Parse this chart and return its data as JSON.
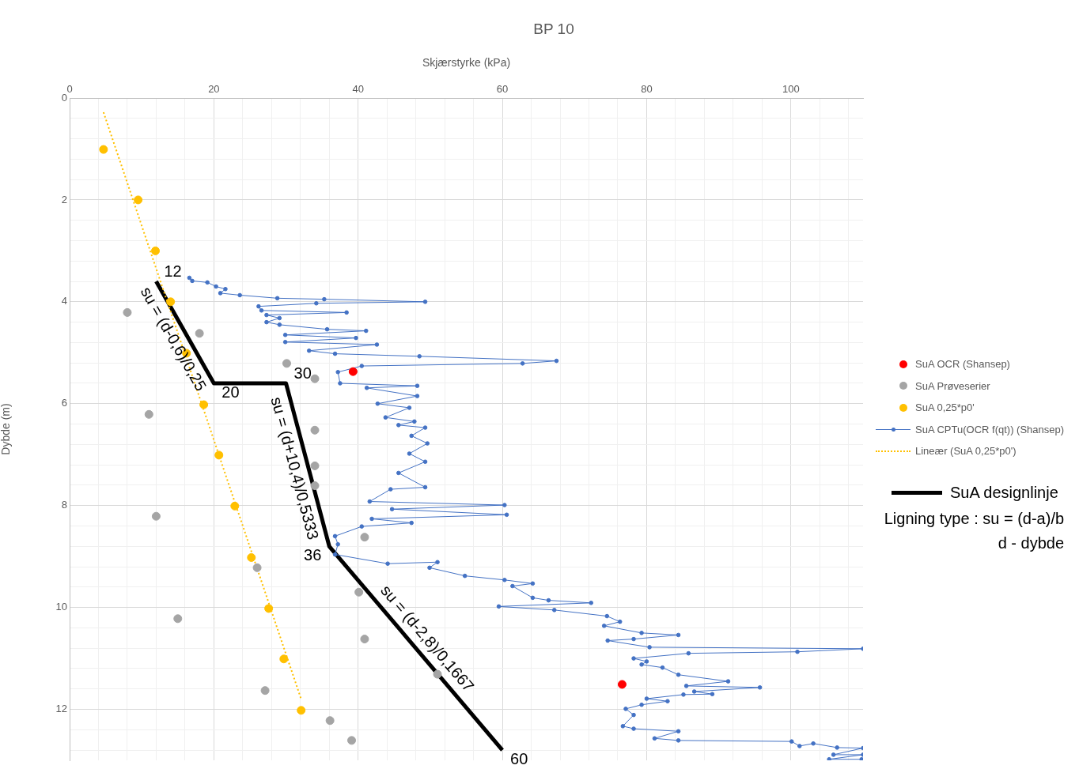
{
  "chart_data": {
    "type": "scatter",
    "title": "BP 10",
    "xlabel": "Skjærstyrke (kPa)",
    "ylabel": "Dybde (m)",
    "xlim": [
      0,
      110
    ],
    "ylim": [
      13,
      0
    ],
    "xticks": [
      0,
      {
        "value": 4,
        "label": null
      },
      {
        "value": 8,
        "label": null
      },
      {
        "value": 12,
        "label": null
      },
      {
        "value": 16,
        "label": null
      },
      20,
      {
        "value": 24,
        "label": null
      },
      {
        "value": 28,
        "label": null
      },
      {
        "value": 32,
        "label": null
      },
      {
        "value": 36,
        "label": null
      },
      40,
      {
        "value": 44,
        "label": null
      },
      {
        "value": 48,
        "label": null
      },
      {
        "value": 52,
        "label": null
      },
      {
        "value": 56,
        "label": null
      },
      60,
      {
        "value": 64,
        "label": null
      },
      {
        "value": 68,
        "label": null
      },
      {
        "value": 72,
        "label": null
      },
      {
        "value": 76,
        "label": null
      },
      80,
      {
        "value": 84,
        "label": null
      },
      {
        "value": 88,
        "label": null
      },
      {
        "value": 92,
        "label": null
      },
      {
        "value": 96,
        "label": null
      },
      100,
      {
        "value": 104,
        "label": null
      },
      {
        "value": 108,
        "label": null
      }
    ],
    "yticks": [
      0,
      {
        "value": 0.4,
        "label": null
      },
      {
        "value": 0.8,
        "label": null
      },
      {
        "value": 1.2,
        "label": null
      },
      {
        "value": 1.6,
        "label": null
      },
      2,
      {
        "value": 2.4,
        "label": null
      },
      {
        "value": 2.8,
        "label": null
      },
      {
        "value": 3.2,
        "label": null
      },
      {
        "value": 3.6,
        "label": null
      },
      4,
      {
        "value": 4.4,
        "label": null
      },
      {
        "value": 4.8,
        "label": null
      },
      {
        "value": 5.2,
        "label": null
      },
      {
        "value": 5.6,
        "label": null
      },
      6,
      {
        "value": 6.4,
        "label": null
      },
      {
        "value": 6.8,
        "label": null
      },
      {
        "value": 7.2,
        "label": null
      },
      {
        "value": 7.6,
        "label": null
      },
      8,
      {
        "value": 8.4,
        "label": null
      },
      {
        "value": 8.8,
        "label": null
      },
      {
        "value": 9.2,
        "label": null
      },
      {
        "value": 9.6,
        "label": null
      },
      10,
      {
        "value": 10.4,
        "label": null
      },
      {
        "value": 10.8,
        "label": null
      },
      {
        "value": 11.2,
        "label": null
      },
      {
        "value": 11.6,
        "label": null
      },
      12,
      {
        "value": 12.4,
        "label": null
      },
      {
        "value": 12.8,
        "label": null
      }
    ],
    "grid": true,
    "legend": "right",
    "series": [
      {
        "name": "SuA OCR (Shansep)",
        "type": "scatter",
        "marker": "circle",
        "color": "#ff0000",
        "x": [
          39.3,
          76.6
        ],
        "values": [
          5.37,
          11.51
        ]
      },
      {
        "name": "SuA Prøveserier",
        "type": "scatter",
        "marker": "circle",
        "color": "#a5a5a5",
        "x": [
          8.0,
          18.0,
          30.1,
          34.0,
          11.0,
          34.0,
          34.0,
          34.0,
          12.0,
          40.9,
          26.0,
          40.1,
          15.0,
          40.9,
          51.0,
          27.1,
          36.1,
          39.1
        ],
        "values": [
          4.21,
          4.62,
          5.21,
          5.51,
          6.21,
          6.52,
          7.22,
          7.61,
          8.21,
          8.62,
          9.22,
          9.7,
          10.22,
          10.62,
          11.31,
          11.63,
          12.22,
          12.61
        ]
      },
      {
        "name": "SuA 0,25*p0'",
        "type": "scatter",
        "marker": "circle",
        "color": "#ffc000",
        "x": [
          4.7,
          9.5,
          11.9,
          14.0,
          16.2,
          18.6,
          20.7,
          22.9,
          25.2,
          27.6,
          29.7,
          32.1
        ],
        "values": [
          1.01,
          2.0,
          3.0,
          4.0,
          5.01,
          6.02,
          7.01,
          8.01,
          9.02,
          10.02,
          11.01,
          12.02
        ]
      },
      {
        "name": "SuA CPTu(OCR f(qt)) (Shansep)",
        "type": "line",
        "marker": "circle",
        "color": "#4472c4",
        "x": [
          16.6,
          17.0,
          19.1,
          20.3,
          21.6,
          20.9,
          23.6,
          28.8,
          35.3,
          49.3,
          34.2,
          26.2,
          26.6,
          38.4,
          27.3,
          29.1,
          27.3,
          29.1,
          35.7,
          41.1,
          29.9,
          39.7,
          29.9,
          42.6,
          33.2,
          36.8,
          48.5,
          67.5,
          62.8,
          40.5,
          37.2,
          37.5,
          48.2,
          41.2,
          48.2,
          42.7,
          47.1,
          43.8,
          47.8,
          45.6,
          49.3,
          47.4,
          49.6,
          47.1,
          49.3,
          45.6,
          49.3,
          44.5,
          41.6,
          60.3,
          44.7,
          60.6,
          41.9,
          47.4,
          40.5,
          36.8,
          37.2,
          36.8,
          44.1,
          51.0,
          49.9,
          54.8,
          60.3,
          64.2,
          61.4,
          64.2,
          66.4,
          72.3,
          59.5,
          67.2,
          74.5,
          76.3,
          74.1,
          79.3,
          84.4,
          78.2,
          74.6,
          80.4,
          110,
          100.9,
          85.8,
          78.2,
          80.0,
          79.3,
          82.2,
          84.4,
          91.3,
          85.5,
          95.7,
          86.6,
          89.1,
          85.1,
          80.0,
          82.9,
          79.3,
          77.1,
          78.2,
          76.7,
          78.2,
          84.4,
          81.1,
          84.4,
          100.1,
          101.2,
          103.1,
          106.4,
          110,
          105.9,
          110,
          105.3,
          109.8
        ],
        "values": [
          3.53,
          3.59,
          3.62,
          3.7,
          3.75,
          3.83,
          3.87,
          3.93,
          3.95,
          4.0,
          4.03,
          4.09,
          4.17,
          4.21,
          4.26,
          4.32,
          4.4,
          4.45,
          4.54,
          4.57,
          4.65,
          4.71,
          4.79,
          4.84,
          4.96,
          5.02,
          5.07,
          5.16,
          5.21,
          5.26,
          5.38,
          5.6,
          5.65,
          5.69,
          5.85,
          6.0,
          6.08,
          6.27,
          6.35,
          6.42,
          6.47,
          6.63,
          6.78,
          6.98,
          7.14,
          7.36,
          7.64,
          7.68,
          7.92,
          7.99,
          8.07,
          8.18,
          8.26,
          8.34,
          8.41,
          8.6,
          8.76,
          8.96,
          9.14,
          9.11,
          9.22,
          9.38,
          9.46,
          9.53,
          9.58,
          9.81,
          9.86,
          9.91,
          9.98,
          10.05,
          10.17,
          10.28,
          10.36,
          10.5,
          10.54,
          10.62,
          10.65,
          10.78,
          10.81,
          10.87,
          10.9,
          11.0,
          11.06,
          11.12,
          11.18,
          11.32,
          11.45,
          11.54,
          11.57,
          11.65,
          11.7,
          11.71,
          11.79,
          11.84,
          11.91,
          11.99,
          12.11,
          12.33,
          12.38,
          12.43,
          12.57,
          12.61,
          12.63,
          12.72,
          12.67,
          12.75,
          12.76,
          12.89,
          12.89,
          12.98,
          12.98
        ]
      },
      {
        "name": "Lineær (SuA 0,25*p0')",
        "type": "line",
        "marker": "none",
        "line_style": "dotted",
        "color": "#ffc000",
        "x": [
          4.7,
          32.1
        ],
        "values": [
          0.28,
          11.8
        ]
      },
      {
        "name": "SuA designlinje",
        "type": "line",
        "marker": "none",
        "line_style": "solid",
        "color": "#000000",
        "x": [
          12,
          20,
          30,
          36,
          60
        ],
        "values": [
          3.6,
          5.6,
          5.6,
          8.8,
          12.8
        ]
      }
    ],
    "annotations": [
      {
        "text": "12",
        "x": 12,
        "y": 3.6
      },
      {
        "text": "20",
        "x": 20,
        "y": 5.6
      },
      {
        "text": "30",
        "x": 30,
        "y": 5.6
      },
      {
        "text": "36",
        "x": 36,
        "y": 8.8
      },
      {
        "text": "60",
        "x": 60,
        "y": 12.8
      },
      {
        "text": "su = (d-0,6)/0,25",
        "x": 16,
        "y": 4.6
      },
      {
        "text": "su = (d+10,4)/0,5333",
        "x": 33,
        "y": 7.2
      },
      {
        "text": "su = (d-2,8)/0,1667",
        "x": 48,
        "y": 10.8
      },
      "Ligning type : su = (d-a)/b",
      "d - dybde"
    ]
  }
}
